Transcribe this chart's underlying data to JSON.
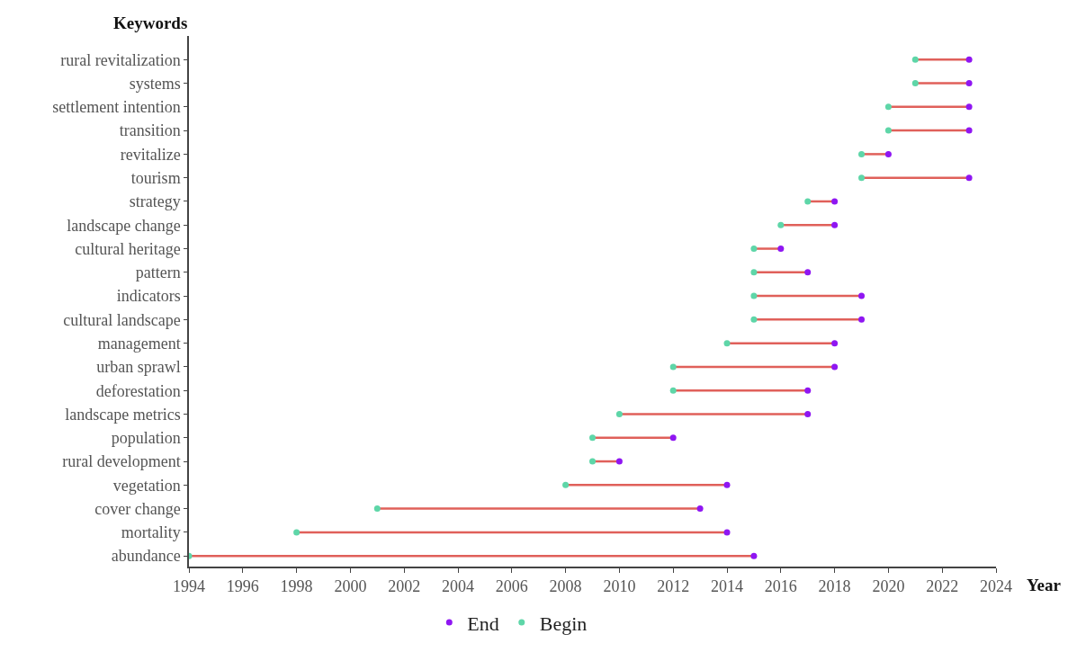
{
  "chart_data": {
    "type": "scatter",
    "orientation": "horizontal",
    "xlabel": "Year",
    "ylabel": "Keywords",
    "categories": [
      "rural revitalization",
      "systems",
      "settlement intention",
      "transition",
      "revitalize",
      "tourism",
      "strategy",
      "landscape change",
      "cultural heritage",
      "pattern",
      "indicators",
      "cultural landscape",
      "management",
      "urban sprawl",
      "deforestation",
      "landscape metrics",
      "population",
      "rural development",
      "vegetation",
      "cover change",
      "mortality",
      "abundance"
    ],
    "series": [
      {
        "name": "End",
        "color": "#8f16f2",
        "values": [
          2023,
          2023,
          2023,
          2023,
          2020,
          2023,
          2018,
          2018,
          2016,
          2017,
          2019,
          2019,
          2018,
          2018,
          2017,
          2017,
          2012,
          2010,
          2014,
          2013,
          2014,
          2015
        ]
      },
      {
        "name": "Begin",
        "color": "#5ed6a8",
        "values": [
          2021,
          2021,
          2020,
          2020,
          2019,
          2019,
          2017,
          2016,
          2015,
          2015,
          2015,
          2015,
          2014,
          2012,
          2012,
          2010,
          2009,
          2009,
          2008,
          2001,
          1998,
          1994
        ]
      }
    ],
    "xlim": [
      1994,
      2024
    ],
    "xticks": [
      1994,
      1996,
      1998,
      2000,
      2002,
      2004,
      2006,
      2008,
      2010,
      2012,
      2014,
      2016,
      2018,
      2020,
      2022,
      2024
    ],
    "marker": "circle",
    "legend": "bottom"
  }
}
